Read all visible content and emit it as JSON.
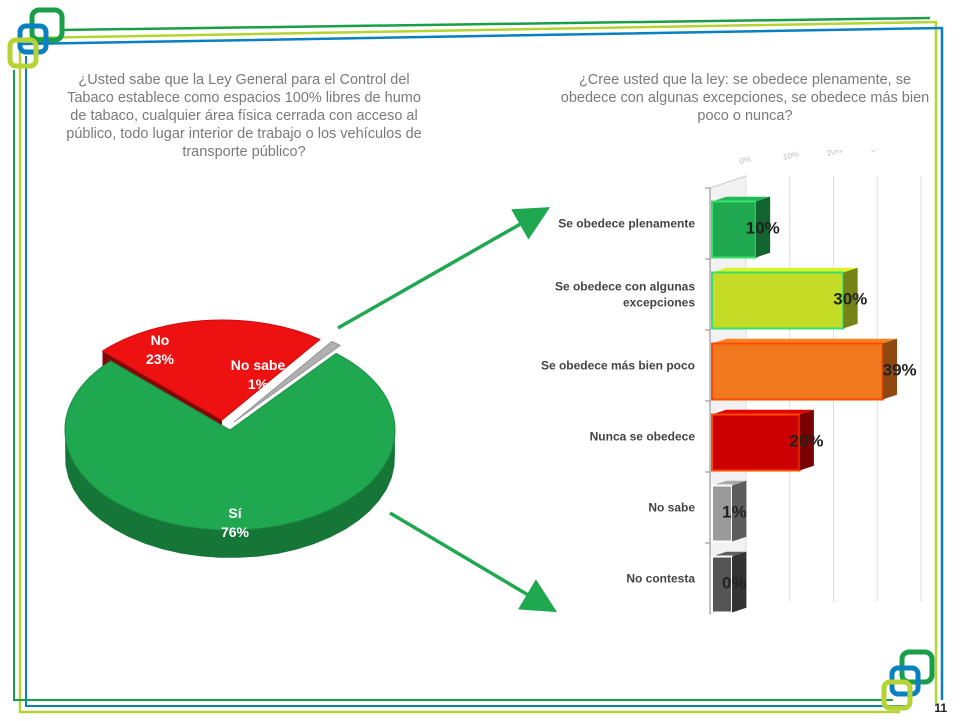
{
  "page_number": "11",
  "colors": {
    "green": "#1a9e4a",
    "lime": "#b5d334",
    "blue": "#0a7fc2",
    "orange": "#f07c1a",
    "red": "#d60000",
    "gray": "#9a9a9a",
    "dark": "#444444"
  },
  "chart_data": [
    {
      "type": "pie",
      "title": "¿Usted sabe que la Ley General para el Control del Tabaco establece como espacios 100% libres de humo de tabaco, cualquier área física cerrada con acceso al público, todo lugar interior de trabajo o los vehículos de transporte público?",
      "categories": [
        "Sí",
        "No",
        "No sabe"
      ],
      "values": [
        76,
        23,
        1
      ],
      "labels": [
        "76%",
        "23%",
        "1%"
      ],
      "colors": [
        "#1fa84f",
        "#ee1111",
        "#b0b0b0"
      ]
    },
    {
      "type": "bar",
      "orientation": "horizontal",
      "title": "¿Cree usted que la ley: se obedece plenamente, se obedece con algunas excepciones, se obedece más bien poco o nunca?",
      "categories": [
        "Se obedece plenamente",
        "Se obedece con algunas excepciones",
        "Se obedece más bien poco",
        "Nunca se obedece",
        "No sabe",
        "No contesta"
      ],
      "values": [
        10,
        30,
        39,
        20,
        1,
        0
      ],
      "labels": [
        "10%",
        "30%",
        "39%",
        "20%",
        "1%",
        "0%"
      ],
      "axis_ticks": [
        "0%",
        "10%",
        "20%",
        "30%",
        "40%"
      ],
      "xlim": [
        0,
        40
      ],
      "colors": [
        "#1fa84f",
        "#c5dc26",
        "#f0781e",
        "#cc0000",
        "#9a9a9a",
        "#555555"
      ]
    }
  ]
}
